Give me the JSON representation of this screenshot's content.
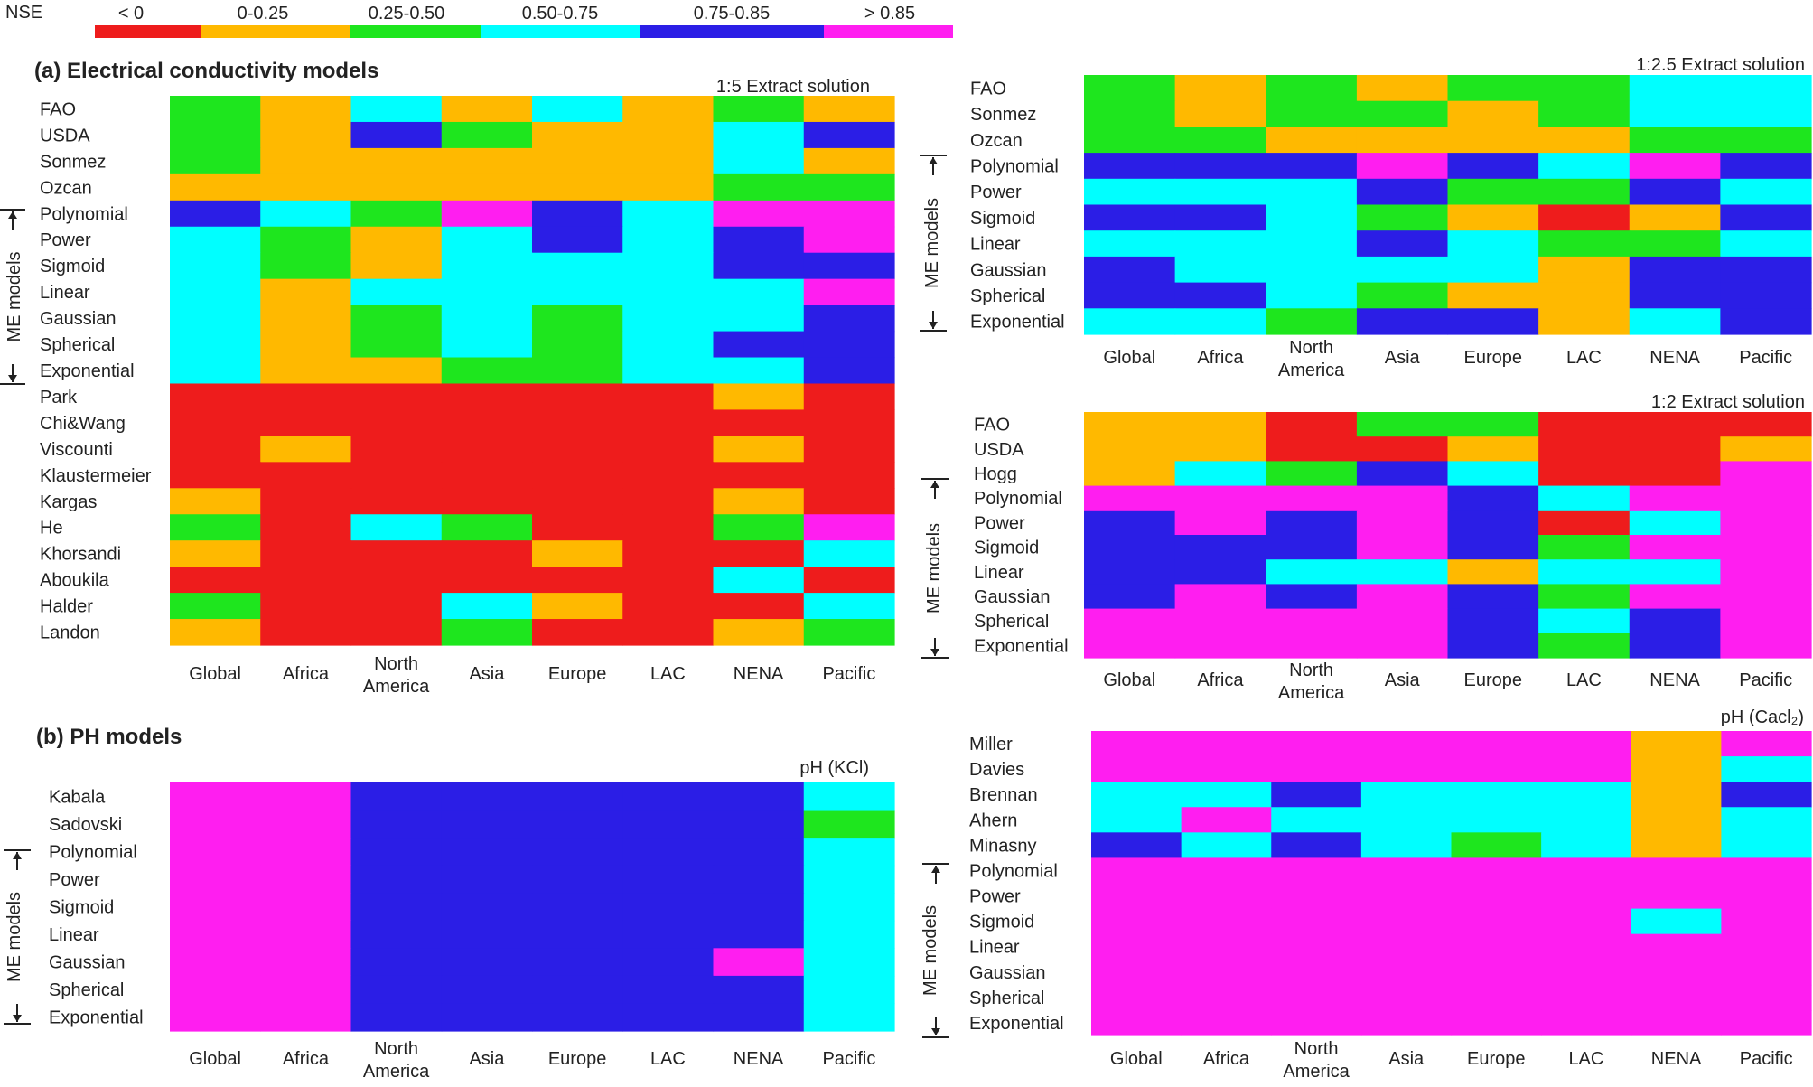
{
  "legend": {
    "title": "NSE",
    "bins": [
      {
        "label": "< 0",
        "color": "#ee1c1c"
      },
      {
        "label": "0-0.25",
        "color": "#ffb900"
      },
      {
        "label": "0.25-0.50",
        "color": "#1ee61e"
      },
      {
        "label": "0.50-0.75",
        "color": "#00ffff"
      },
      {
        "label": "0.75-0.85",
        "color": "#2b1ee6"
      },
      {
        "label": "> 0.85",
        "color": "#ff1ef0"
      }
    ]
  },
  "section_titles": {
    "a": "(a) Electrical conductivity models",
    "b": "(b) PH models"
  },
  "me_label": "ME models",
  "chart_data": [
    {
      "type": "heatmap",
      "title": "1:5 Extract solution",
      "value_scale": "NSE class index 0-5 (0: <0, 1: 0-0.25, 2: 0.25-0.50, 3: 0.50-0.75, 4: 0.75-0.85, 5: >0.85)",
      "columns": [
        "Global",
        "Africa",
        "North America",
        "Asia",
        "Europe",
        "LAC",
        "NENA",
        "Pacific"
      ],
      "rows": [
        "FAO",
        "USDA",
        "Sonmez",
        "Ozcan",
        "Polynomial",
        "Power",
        "Sigmoid",
        "Linear",
        "Gaussian",
        "Spherical",
        "Exponential",
        "Park",
        "Chi&Wang",
        "Viscounti",
        "Klaustermeier",
        "Kargas",
        "He",
        "Khorsandi",
        "Aboukila",
        "Halder",
        "Landon"
      ],
      "me_rows": [
        "Polynomial",
        "Exponential"
      ],
      "values": [
        [
          2,
          1,
          3,
          1,
          3,
          1,
          2,
          1
        ],
        [
          2,
          1,
          4,
          2,
          1,
          1,
          3,
          4
        ],
        [
          2,
          1,
          1,
          1,
          1,
          1,
          3,
          1
        ],
        [
          1,
          1,
          1,
          1,
          1,
          1,
          2,
          2
        ],
        [
          4,
          3,
          2,
          5,
          4,
          3,
          5,
          5
        ],
        [
          3,
          2,
          1,
          3,
          4,
          3,
          4,
          5
        ],
        [
          3,
          2,
          1,
          3,
          3,
          3,
          4,
          4
        ],
        [
          3,
          1,
          3,
          3,
          3,
          3,
          3,
          5
        ],
        [
          3,
          1,
          2,
          3,
          2,
          3,
          3,
          4
        ],
        [
          3,
          1,
          2,
          3,
          2,
          3,
          4,
          4
        ],
        [
          3,
          1,
          1,
          2,
          2,
          3,
          3,
          4
        ],
        [
          0,
          0,
          0,
          0,
          0,
          0,
          1,
          0
        ],
        [
          0,
          0,
          0,
          0,
          0,
          0,
          0,
          0
        ],
        [
          0,
          1,
          0,
          0,
          0,
          0,
          1,
          0
        ],
        [
          0,
          0,
          0,
          0,
          0,
          0,
          0,
          0
        ],
        [
          1,
          0,
          0,
          0,
          0,
          0,
          1,
          0
        ],
        [
          2,
          0,
          3,
          2,
          0,
          0,
          2,
          5
        ],
        [
          1,
          0,
          0,
          0,
          1,
          0,
          0,
          3
        ],
        [
          0,
          0,
          0,
          0,
          0,
          0,
          3,
          0
        ],
        [
          2,
          0,
          0,
          3,
          1,
          0,
          0,
          3
        ],
        [
          1,
          0,
          0,
          2,
          0,
          0,
          1,
          2
        ]
      ]
    },
    {
      "type": "heatmap",
      "title": "1:2.5 Extract solution",
      "value_scale": "NSE class index 0-5",
      "columns": [
        "Global",
        "Africa",
        "North America",
        "Asia",
        "Europe",
        "LAC",
        "NENA",
        "Pacific"
      ],
      "rows": [
        "FAO",
        "Sonmez",
        "Ozcan",
        "Polynomial",
        "Power",
        "Sigmoid",
        "Linear",
        "Gaussian",
        "Spherical",
        "Exponential"
      ],
      "me_rows": [
        "Polynomial",
        "Exponential"
      ],
      "values": [
        [
          2,
          1,
          2,
          1,
          2,
          2,
          3,
          3
        ],
        [
          2,
          1,
          2,
          2,
          1,
          2,
          3,
          3
        ],
        [
          2,
          2,
          1,
          1,
          1,
          1,
          2,
          2
        ],
        [
          4,
          4,
          4,
          5,
          4,
          3,
          5,
          4
        ],
        [
          3,
          3,
          3,
          4,
          2,
          2,
          4,
          3
        ],
        [
          4,
          4,
          3,
          2,
          1,
          0,
          1,
          4
        ],
        [
          3,
          3,
          3,
          4,
          3,
          2,
          2,
          3
        ],
        [
          4,
          3,
          3,
          3,
          3,
          1,
          4,
          4
        ],
        [
          4,
          4,
          3,
          2,
          1,
          1,
          4,
          4
        ],
        [
          3,
          3,
          2,
          4,
          4,
          1,
          3,
          4
        ]
      ]
    },
    {
      "type": "heatmap",
      "title": "1:2 Extract solution",
      "value_scale": "NSE class index 0-5",
      "columns": [
        "Global",
        "Africa",
        "North America",
        "Asia",
        "Europe",
        "LAC",
        "NENA",
        "Pacific"
      ],
      "rows": [
        "FAO",
        "USDA",
        "Hogg",
        "Polynomial",
        "Power",
        "Sigmoid",
        "Linear",
        "Gaussian",
        "Spherical",
        "Exponential"
      ],
      "me_rows": [
        "Polynomial",
        "Exponential"
      ],
      "values": [
        [
          1,
          1,
          0,
          2,
          2,
          0,
          0,
          0
        ],
        [
          1,
          1,
          0,
          0,
          1,
          0,
          0,
          1
        ],
        [
          1,
          3,
          2,
          4,
          3,
          0,
          0,
          5
        ],
        [
          5,
          5,
          5,
          5,
          4,
          3,
          5,
          5
        ],
        [
          4,
          5,
          4,
          5,
          4,
          0,
          3,
          5
        ],
        [
          4,
          4,
          4,
          5,
          4,
          2,
          5,
          5
        ],
        [
          4,
          4,
          3,
          3,
          1,
          3,
          3,
          5
        ],
        [
          4,
          5,
          4,
          5,
          4,
          2,
          5,
          5
        ],
        [
          5,
          5,
          5,
          5,
          4,
          3,
          4,
          5
        ],
        [
          5,
          5,
          5,
          5,
          4,
          2,
          4,
          5
        ]
      ]
    },
    {
      "type": "heatmap",
      "title": "pH (KCl)",
      "value_scale": "NSE class index 0-5",
      "columns": [
        "Global",
        "Africa",
        "North America",
        "Asia",
        "Europe",
        "LAC",
        "NENA",
        "Pacific"
      ],
      "rows": [
        "Kabala",
        "Sadovski",
        "Polynomial",
        "Power",
        "Sigmoid",
        "Linear",
        "Gaussian",
        "Spherical",
        "Exponential"
      ],
      "me_rows": [
        "Polynomial",
        "Exponential"
      ],
      "values": [
        [
          5,
          5,
          4,
          4,
          4,
          4,
          4,
          3
        ],
        [
          5,
          5,
          4,
          4,
          4,
          4,
          4,
          2
        ],
        [
          5,
          5,
          4,
          4,
          4,
          4,
          4,
          3
        ],
        [
          5,
          5,
          4,
          4,
          4,
          4,
          4,
          3
        ],
        [
          5,
          5,
          4,
          4,
          4,
          4,
          4,
          3
        ],
        [
          5,
          5,
          4,
          4,
          4,
          4,
          4,
          3
        ],
        [
          5,
          5,
          4,
          4,
          4,
          4,
          5,
          3
        ],
        [
          5,
          5,
          4,
          4,
          4,
          4,
          4,
          3
        ],
        [
          5,
          5,
          4,
          4,
          4,
          4,
          4,
          3
        ]
      ]
    },
    {
      "type": "heatmap",
      "title": "pH (Cacl₂)",
      "value_scale": "NSE class index 0-5",
      "columns": [
        "Global",
        "Africa",
        "North America",
        "Asia",
        "Europe",
        "LAC",
        "NENA",
        "Pacific"
      ],
      "rows": [
        "Miller",
        "Davies",
        "Brennan",
        "Ahern",
        "Minasny",
        "Polynomial",
        "Power",
        "Sigmoid",
        "Linear",
        "Gaussian",
        "Spherical",
        "Exponential"
      ],
      "me_rows": [
        "Polynomial",
        "Exponential"
      ],
      "values": [
        [
          5,
          5,
          5,
          5,
          5,
          5,
          1,
          5
        ],
        [
          5,
          5,
          5,
          5,
          5,
          5,
          1,
          3
        ],
        [
          3,
          3,
          4,
          3,
          3,
          3,
          1,
          4
        ],
        [
          3,
          5,
          3,
          3,
          3,
          3,
          1,
          3
        ],
        [
          4,
          3,
          4,
          3,
          2,
          3,
          1,
          3
        ],
        [
          5,
          5,
          5,
          5,
          5,
          5,
          5,
          5
        ],
        [
          5,
          5,
          5,
          5,
          5,
          5,
          5,
          5
        ],
        [
          5,
          5,
          5,
          5,
          5,
          5,
          3,
          5
        ],
        [
          5,
          5,
          5,
          5,
          5,
          5,
          5,
          5
        ],
        [
          5,
          5,
          5,
          5,
          5,
          5,
          5,
          5
        ],
        [
          5,
          5,
          5,
          5,
          5,
          5,
          5,
          5
        ],
        [
          5,
          5,
          5,
          5,
          5,
          5,
          5,
          5
        ]
      ]
    }
  ]
}
